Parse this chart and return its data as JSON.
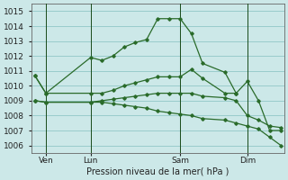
{
  "background_color": "#cce8e8",
  "grid_color": "#99cccc",
  "line_color": "#2a6b2a",
  "title": "Pression niveau de la mer( hPa )",
  "yticks": [
    1006,
    1007,
    1008,
    1009,
    1010,
    1011,
    1012,
    1013,
    1014,
    1015
  ],
  "ylim": [
    1005.5,
    1015.5
  ],
  "xtick_labels": [
    "Ven",
    "Lun",
    "Sam",
    "Dim"
  ],
  "xtick_positions": [
    1,
    5,
    13,
    19
  ],
  "series": [
    {
      "x": [
        0,
        1,
        5,
        6,
        7,
        8,
        9,
        10,
        11,
        12,
        13,
        14,
        15,
        17,
        18
      ],
      "y": [
        1010.7,
        1009.5,
        1011.9,
        1011.7,
        1012.0,
        1012.6,
        1012.9,
        1013.1,
        1014.5,
        1014.5,
        1014.5,
        1013.5,
        1011.5,
        1010.9,
        1009.5
      ]
    },
    {
      "x": [
        0,
        1,
        5,
        6,
        7,
        8,
        9,
        10,
        11,
        12,
        13,
        14,
        15,
        17,
        18,
        19,
        20,
        21,
        22
      ],
      "y": [
        1010.7,
        1009.5,
        1009.5,
        1009.5,
        1009.7,
        1010.0,
        1010.2,
        1010.4,
        1010.6,
        1010.6,
        1010.6,
        1011.1,
        1010.5,
        1009.5,
        1009.5,
        1010.3,
        1009.0,
        1007.0,
        1007.0
      ]
    },
    {
      "x": [
        0,
        1,
        5,
        6,
        7,
        8,
        9,
        10,
        11,
        12,
        13,
        14,
        15,
        17,
        18,
        19,
        20,
        21,
        22
      ],
      "y": [
        1009.0,
        1008.9,
        1008.9,
        1009.0,
        1009.1,
        1009.2,
        1009.3,
        1009.4,
        1009.5,
        1009.5,
        1009.5,
        1009.5,
        1009.3,
        1009.2,
        1009.0,
        1008.0,
        1007.7,
        1007.3,
        1007.2
      ]
    },
    {
      "x": [
        0,
        1,
        5,
        6,
        7,
        8,
        9,
        10,
        11,
        12,
        13,
        14,
        15,
        17,
        18,
        19,
        20,
        21,
        22
      ],
      "y": [
        1009.0,
        1008.9,
        1008.9,
        1008.9,
        1008.8,
        1008.7,
        1008.6,
        1008.5,
        1008.3,
        1008.2,
        1008.1,
        1008.0,
        1007.8,
        1007.7,
        1007.5,
        1007.3,
        1007.1,
        1006.55,
        1006.0
      ]
    }
  ],
  "vline_positions": [
    1,
    5,
    13,
    19
  ],
  "n_total": 23
}
